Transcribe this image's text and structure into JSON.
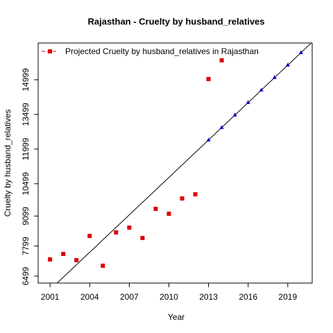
{
  "chart_data": {
    "type": "scatter",
    "title": "Rajasthan  -  Cruelty by husband_relatives",
    "xlabel": "Year",
    "ylabel": "Cruelty by husband_relatives",
    "xlim": [
      2000.1,
      2020.85
    ],
    "xticks": [
      2001,
      2004,
      2007,
      2010,
      2013,
      2016,
      2019
    ],
    "ylim": [
      6199,
      16589
    ],
    "yticks": [
      6499,
      7799,
      9099,
      10499,
      11999,
      13499,
      14999
    ],
    "legend": "top-left",
    "series": [
      {
        "name": "Projected  Cruelty by husband_relatives  in  Rajasthan",
        "color": "#dd0000",
        "marker": "square",
        "x": [
          2001,
          2002,
          2003,
          2004,
          2005,
          2006,
          2007,
          2008,
          2009,
          2010,
          2011,
          2012,
          2013,
          2014
        ],
        "values": [
          7220,
          7460,
          7190,
          8240,
          6950,
          8390,
          8600,
          8150,
          9410,
          9200,
          9860,
          10040,
          15030,
          15840
        ]
      },
      {
        "color": "#0000cc",
        "marker": "triangle",
        "x": [
          2013,
          2014,
          2015,
          2016,
          2017,
          2018,
          2019,
          2020
        ],
        "values": [
          12390,
          12930,
          13470,
          14010,
          14550,
          15090,
          15630,
          16170
        ]
      }
    ],
    "fit_line": {
      "color": "#000000",
      "x": [
        2001,
        2020.76
      ],
      "values": [
        5910,
        16580
      ]
    }
  }
}
